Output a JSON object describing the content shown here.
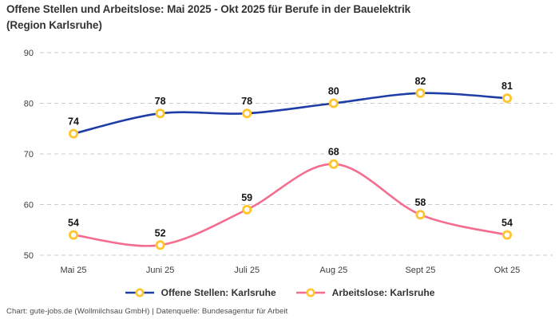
{
  "header": {
    "title": "Offene Stellen und Arbeitslose: Mai 2025 - Okt 2025 für Berufe in der Bauelektrik\n(Region Karlsruhe)"
  },
  "chart_data": {
    "type": "line",
    "title": "Offene Stellen und Arbeitslose: Mai 2025 - Okt 2025 für Berufe in der Bauelektrik (Region Karlsruhe)",
    "categories": [
      "Mai 25",
      "Juni 25",
      "Juli 25",
      "Aug 25",
      "Sept 25",
      "Okt 25"
    ],
    "series": [
      {
        "name": "Offene Stellen: Karlsruhe",
        "color": "#1f3da6",
        "values": [
          74,
          78,
          78,
          80,
          82,
          81
        ]
      },
      {
        "name": "Arbeitslose: Karlsruhe",
        "color": "#f56d8e",
        "values": [
          54,
          52,
          59,
          68,
          58,
          54
        ]
      }
    ],
    "marker_color": "#ffc42e",
    "marker_fill": "#ffffff",
    "ylim": [
      50,
      90
    ],
    "yticks": [
      50,
      60,
      70,
      80,
      90
    ],
    "xlabel": "",
    "ylabel": "",
    "grid": "horizontal-dashed",
    "grid_color": "#cbcbcb",
    "tick_label_color": "#3d3d3d",
    "value_label_color": "#161616",
    "legend_position": "bottom",
    "smooth": true,
    "show_point_labels": true
  },
  "legend": {
    "items": [
      {
        "label": "Offene Stellen: Karlsruhe",
        "color": "#1f3da6"
      },
      {
        "label": "Arbeitslose: Karlsruhe",
        "color": "#f56d8e"
      }
    ]
  },
  "footer": {
    "note": "Chart: gute-jobs.de (Wollmilchsau GmbH) | Datenquelle: Bundesagentur für Arbeit"
  }
}
